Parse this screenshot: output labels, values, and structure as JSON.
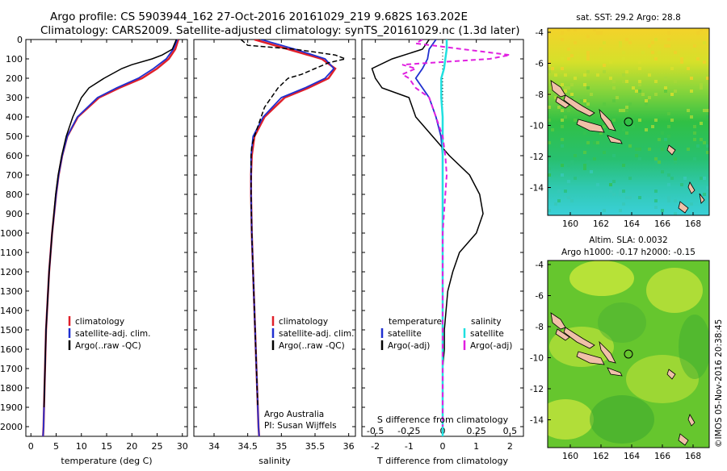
{
  "header": {
    "line1": "Argo profile: CS 5903944_162 27-Oct-2016 20161029_219 9.682S 163.202E",
    "line2": "Climatology: CARS2009. Satellite-adjusted climatology: synTS_20161029.nc (1.3d later)"
  },
  "colors": {
    "climatology": "#e0202a",
    "satellite": "#2030d0",
    "argo": "#000000",
    "sal_satellite": "#20e0e0",
    "sal_argo": "#e020e0"
  },
  "depth_ticks": [
    "0",
    "100",
    "200",
    "300",
    "400",
    "500",
    "600",
    "700",
    "800",
    "900",
    "1000",
    "1100",
    "1200",
    "1300",
    "1400",
    "1500",
    "1600",
    "1700",
    "1800",
    "1900",
    "2000"
  ],
  "temperature_panel": {
    "xlabel": "temperature (deg C)",
    "xticks": [
      "0",
      "5",
      "10",
      "15",
      "20",
      "25",
      "30"
    ],
    "legend": [
      "climatology",
      "satellite-adj. clim.",
      "Argo(..raw -QC)"
    ]
  },
  "salinity_panel": {
    "xlabel": "salinity",
    "xticks": [
      "34",
      "34.5",
      "35",
      "35.5",
      "36"
    ],
    "legend": [
      "climatology",
      "satellite-adj. clim.",
      "Argo(..raw -QC)"
    ],
    "note1": "Argo Australia",
    "note2": "PI: Susan Wijffels"
  },
  "difference_panel": {
    "xlabel": "T difference from climatology",
    "top_label": "S difference from climatology",
    "xticks": [
      "-2",
      "-1",
      "0",
      "1",
      "2"
    ],
    "s_ticks": [
      "-0.5",
      "-0.25",
      "0",
      "0.25",
      "0.5"
    ],
    "legend_temperature_title": "temperature",
    "legend_salinity_title": "salinity",
    "legend_t": [
      "satellite",
      "Argo(-adj)"
    ],
    "legend_s": [
      "satellite",
      "Argo(-adj)"
    ]
  },
  "sst_map": {
    "title": "sat. SST: 29.2 Argo: 28.8",
    "xticks": [
      "160",
      "162",
      "164",
      "166",
      "168"
    ],
    "yticks": [
      "-4",
      "-6",
      "-8",
      "-10",
      "-12",
      "-14"
    ]
  },
  "sla_map": {
    "title1": "Altim. SLA: 0.0032",
    "title2": "Argo h1000: -0.17 h2000: -0.15",
    "xticks": [
      "160",
      "162",
      "164",
      "166",
      "168"
    ],
    "yticks": [
      "-4",
      "-6",
      "-8",
      "-10",
      "-12",
      "-14"
    ]
  },
  "credit": "©IMOS 05-Nov-2016 20:38:45",
  "chart_data": [
    {
      "type": "line",
      "xlabel": "temperature (deg C)",
      "ylabel": "",
      "xlim": [
        -1,
        31
      ],
      "ylim": [
        2050,
        0
      ],
      "series": [
        {
          "name": "climatology",
          "depth": [
            0,
            50,
            100,
            150,
            200,
            250,
            300,
            400,
            500,
            600,
            700,
            800,
            1000,
            1200,
            1500,
            1800,
            2000,
            2050
          ],
          "values": [
            29.2,
            28.6,
            27.3,
            25.0,
            22.0,
            17.5,
            13.5,
            9.3,
            7.2,
            6.2,
            5.5,
            5.0,
            4.2,
            3.6,
            3.0,
            2.7,
            2.5,
            2.4
          ]
        },
        {
          "name": "satellite-adj. clim.",
          "depth": [
            0,
            50,
            100,
            150,
            200,
            250,
            300,
            400,
            500,
            600,
            700,
            800,
            1000,
            1200,
            1500,
            1800,
            2000,
            2050
          ],
          "values": [
            29.0,
            28.2,
            26.8,
            24.3,
            21.3,
            17.0,
            13.2,
            9.2,
            7.2,
            6.2,
            5.5,
            5.0,
            4.2,
            3.6,
            3.0,
            2.7,
            2.5,
            2.4
          ]
        },
        {
          "name": "Argo(..raw -QC)",
          "depth": [
            0,
            50,
            80,
            100,
            130,
            150,
            200,
            250,
            300,
            400,
            500,
            600,
            700,
            800,
            1000,
            1200,
            1500,
            1800,
            1900
          ],
          "values": [
            28.8,
            28.0,
            26.0,
            24.0,
            20.0,
            18.0,
            14.5,
            11.5,
            10.0,
            8.3,
            7.0,
            6.1,
            5.4,
            4.9,
            4.2,
            3.6,
            3.0,
            2.7,
            2.6
          ]
        }
      ]
    },
    {
      "type": "line",
      "xlabel": "salinity",
      "ylabel": "",
      "xlim": [
        33.7,
        36.1
      ],
      "ylim": [
        2050,
        0
      ],
      "series": [
        {
          "name": "climatology",
          "depth": [
            0,
            50,
            100,
            150,
            200,
            250,
            300,
            400,
            500,
            600,
            700,
            800,
            1000,
            1200,
            1500,
            1800,
            2000,
            2050
          ],
          "values": [
            34.6,
            35.1,
            35.6,
            35.8,
            35.7,
            35.4,
            35.05,
            34.75,
            34.6,
            34.56,
            34.55,
            34.55,
            34.56,
            34.58,
            34.61,
            34.64,
            34.66,
            34.67
          ]
        },
        {
          "name": "satellite-adj. clim.",
          "depth": [
            0,
            50,
            100,
            150,
            200,
            250,
            300,
            400,
            500,
            600,
            700,
            800,
            1000,
            1200,
            1500,
            1800,
            2000,
            2050
          ],
          "values": [
            34.7,
            35.2,
            35.65,
            35.78,
            35.65,
            35.35,
            35.0,
            34.73,
            34.58,
            34.55,
            34.55,
            34.55,
            34.56,
            34.58,
            34.61,
            34.64,
            34.66,
            34.67
          ]
        },
        {
          "name": "Argo(..raw -QC)",
          "depth": [
            0,
            30,
            50,
            80,
            100,
            120,
            150,
            180,
            200,
            250,
            300,
            350,
            400,
            500,
            550,
            600,
            700,
            800,
            1000,
            1200,
            1500,
            1800,
            1900
          ],
          "values": [
            34.4,
            34.5,
            35.2,
            35.8,
            35.95,
            35.7,
            35.5,
            35.3,
            35.1,
            34.95,
            34.85,
            34.75,
            34.7,
            34.6,
            34.56,
            34.55,
            34.55,
            34.55,
            34.56,
            34.58,
            34.61,
            34.64,
            34.65
          ]
        }
      ]
    },
    {
      "type": "line",
      "xlabel": "T difference from climatology",
      "ylabel": "",
      "xlim": [
        -2.4,
        2.4
      ],
      "ylim": [
        2050,
        0
      ],
      "series": [
        {
          "name": "satellite (temperature)",
          "depth": [
            0,
            50,
            100,
            150,
            200,
            300,
            400,
            500,
            600,
            800,
            1000,
            1500,
            2000,
            2050
          ],
          "values": [
            -0.2,
            -0.4,
            -0.45,
            -0.6,
            -0.8,
            -0.4,
            -0.2,
            -0.05,
            0,
            0,
            0,
            0,
            0,
            0
          ]
        },
        {
          "name": "Argo(-adj) (temperature)",
          "depth": [
            0,
            50,
            100,
            150,
            200,
            250,
            300,
            400,
            500,
            600,
            700,
            800,
            900,
            1000,
            1100,
            1200,
            1300,
            1400,
            1500,
            1600,
            1700,
            1800,
            1900,
            2000
          ],
          "values": [
            -0.4,
            -0.6,
            -1.5,
            -2.1,
            -2.0,
            -1.8,
            -1.0,
            -0.8,
            -0.3,
            0.2,
            0.8,
            1.1,
            1.2,
            1.0,
            0.5,
            0.3,
            0.15,
            0.1,
            0.05,
            0.05,
            0.0,
            0.0,
            0.0,
            0.0
          ]
        },
        {
          "name": "satellite (salinity)",
          "depth": [
            0,
            50,
            100,
            150,
            200,
            300,
            400,
            500,
            600,
            800,
            1000,
            1500,
            2000,
            2050
          ],
          "values": [
            0.03,
            0.03,
            0.02,
            0.01,
            -0.01,
            -0.01,
            0.0,
            0.0,
            0.0,
            0.0,
            0.0,
            0.0,
            0.0,
            0.0
          ]
        },
        {
          "name": "Argo(-adj) (salinity)",
          "depth": [
            0,
            20,
            50,
            80,
            100,
            130,
            150,
            180,
            200,
            250,
            300,
            400,
            500,
            600,
            700,
            800,
            1000,
            1200,
            1500,
            1800,
            2000
          ],
          "values": [
            -0.15,
            -0.2,
            0.15,
            0.5,
            0.35,
            -0.3,
            -0.2,
            -0.3,
            -0.25,
            -0.2,
            -0.1,
            -0.05,
            0.0,
            0.02,
            0.03,
            0.02,
            0.0,
            0.0,
            0.0,
            0.0,
            0.0
          ]
        }
      ]
    },
    {
      "type": "heatmap",
      "title": "sat. SST: 29.2 Argo: 28.8",
      "xlim": [
        158.3,
        168.3
      ],
      "ylim": [
        -15.5,
        -3.5
      ],
      "argo_position": [
        163.2,
        -9.68
      ]
    },
    {
      "type": "heatmap",
      "title": "Altim. SLA: 0.0032",
      "xlim": [
        158.3,
        168.3
      ],
      "ylim": [
        -15.5,
        -3.5
      ],
      "argo_position": [
        163.2,
        -9.68
      ]
    }
  ]
}
